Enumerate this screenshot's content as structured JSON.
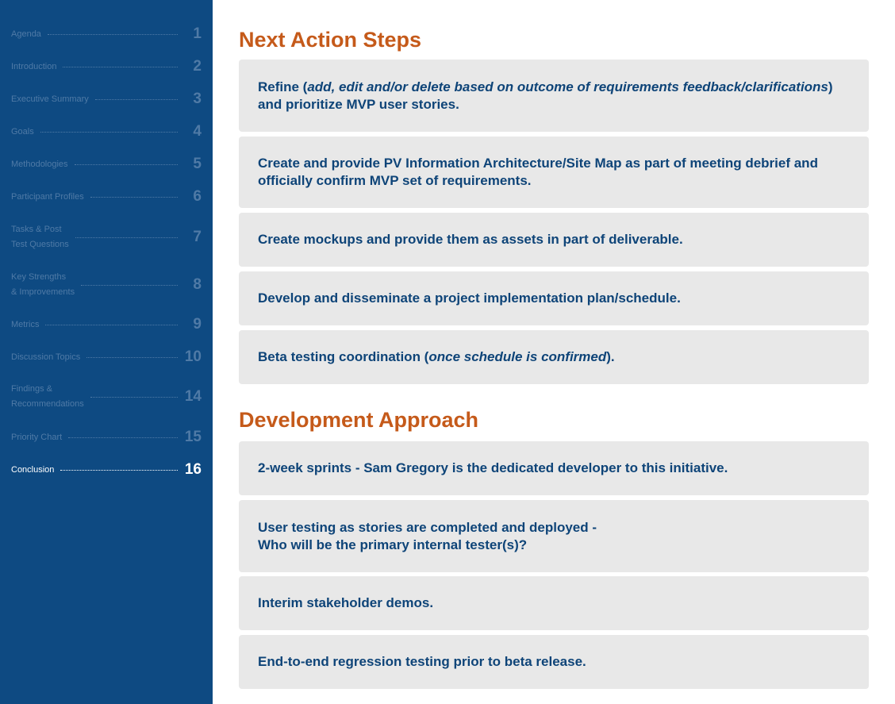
{
  "sidebar": {
    "items": [
      {
        "label": [
          "Agenda"
        ],
        "num": "1"
      },
      {
        "label": [
          "Introduction"
        ],
        "num": "2"
      },
      {
        "label": [
          "Executive Summary"
        ],
        "num": "3"
      },
      {
        "label": [
          "Goals"
        ],
        "num": "4"
      },
      {
        "label": [
          "Methodologies"
        ],
        "num": "5"
      },
      {
        "label": [
          "Participant Profiles"
        ],
        "num": "6"
      },
      {
        "label": [
          "Tasks & Post",
          "Test Questions"
        ],
        "num": "7"
      },
      {
        "label": [
          "Key Strengths",
          "& Improvements"
        ],
        "num": "8"
      },
      {
        "label": [
          "Metrics"
        ],
        "num": "9"
      },
      {
        "label": [
          "Discussion Topics"
        ],
        "num": "10"
      },
      {
        "label": [
          "Findings &",
          "Recommendations"
        ],
        "num": "14"
      },
      {
        "label": [
          "Priority Chart"
        ],
        "num": "15"
      },
      {
        "label": [
          "Conclusion"
        ],
        "num": "16"
      }
    ],
    "active_index": 12
  },
  "next_steps": {
    "title": "Next Action Steps",
    "cards": [
      {
        "lines": [
          [
            {
              "t": "Refine (",
              "i": false
            },
            {
              "t": "add, edit and/or delete based on outcome of requirements feedback/clarifications",
              "i": true
            },
            {
              "t": ")",
              "i": false
            }
          ],
          [
            {
              "t": "and prioritize MVP user stories.",
              "i": false
            }
          ]
        ]
      },
      {
        "lines": [
          [
            {
              "t": "Create and provide PV Information Architecture/Site Map as part of meeting debrief and",
              "i": false
            }
          ],
          [
            {
              "t": "officially confirm MVP set of requirements.",
              "i": false
            }
          ]
        ]
      },
      {
        "lines": [
          [
            {
              "t": "Create mockups and provide them as assets in part of deliverable.",
              "i": false
            }
          ]
        ]
      },
      {
        "lines": [
          [
            {
              "t": "Develop and disseminate a project implementation plan/schedule.",
              "i": false
            }
          ]
        ]
      },
      {
        "lines": [
          [
            {
              "t": "Beta testing coordination (",
              "i": false
            },
            {
              "t": "once schedule is confirmed",
              "i": true
            },
            {
              "t": ").",
              "i": false
            }
          ]
        ]
      }
    ]
  },
  "dev_approach": {
    "title": "Development Approach",
    "cards": [
      {
        "lines": [
          [
            {
              "t": "2-week sprints - Sam Gregory is the dedicated developer to this initiative.",
              "i": false
            }
          ]
        ]
      },
      {
        "lines": [
          [
            {
              "t": "User testing as stories are completed and deployed -",
              "i": false
            }
          ],
          [
            {
              "t": "Who will be the primary internal tester(s)?",
              "i": false
            }
          ]
        ]
      },
      {
        "lines": [
          [
            {
              "t": "Interim stakeholder demos.",
              "i": false
            }
          ]
        ]
      },
      {
        "lines": [
          [
            {
              "t": "End-to-end regression testing prior to beta release.",
              "i": false
            }
          ]
        ]
      }
    ]
  }
}
